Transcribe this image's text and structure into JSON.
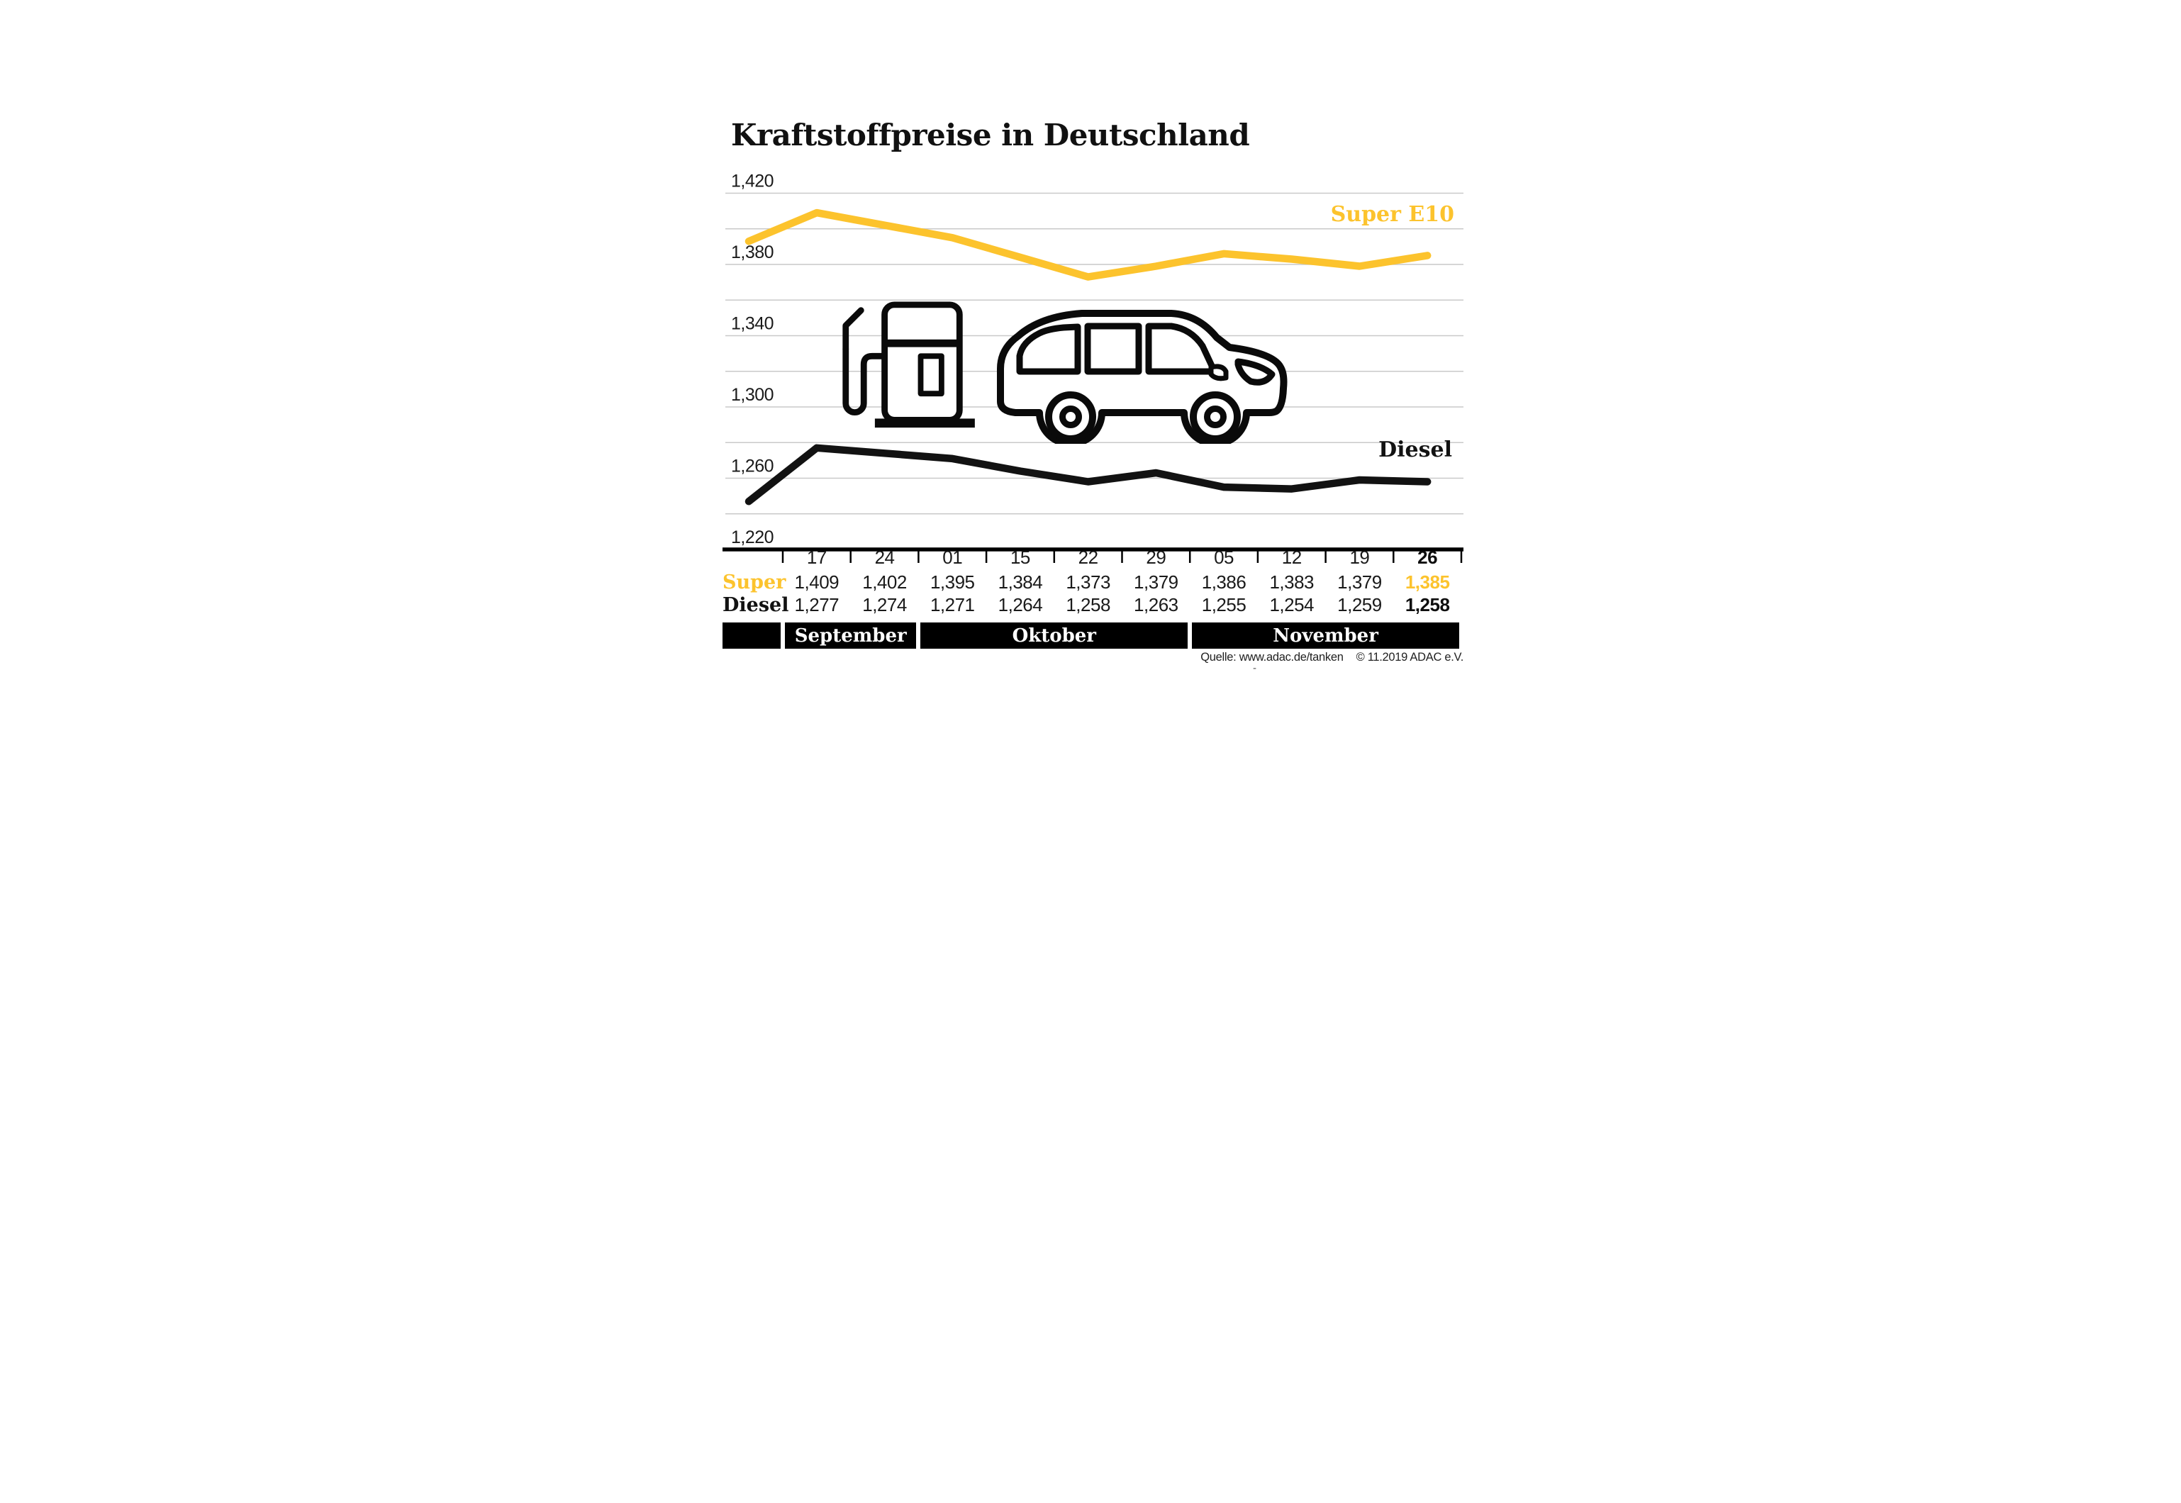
{
  "title": "Kraftstoffpreise in Deutschland",
  "footer": {
    "source": "Quelle: www.adac.de/tanken",
    "copyright": "© 11.2019  ADAC e.V.",
    "stray_mark": "-"
  },
  "colors": {
    "super_yellow": "#FCC32D",
    "diesel_black": "#121212",
    "gridline_gray": "#c9c9c9",
    "axis_black": "#000000",
    "band_background": "#000000",
    "band_text": "#ffffff"
  },
  "chart_data": {
    "type": "line",
    "title": "Kraftstoffpreise in Deutschland",
    "x_tick_labels": [
      "17",
      "24",
      "01",
      "15",
      "22",
      "29",
      "05",
      "12",
      "19",
      "26"
    ],
    "months": [
      {
        "label": "September",
        "columns": 2
      },
      {
        "label": "Oktober",
        "columns": 4
      },
      {
        "label": "November",
        "columns": 4
      }
    ],
    "y_ticks": [
      1420,
      1380,
      1340,
      1300,
      1260,
      1220
    ],
    "y_tick_labels": [
      "1,420",
      "1,380",
      "1,340",
      "1,300",
      "1,260",
      "1,220"
    ],
    "grid": {
      "min": 1220,
      "max": 1420,
      "step": 20
    },
    "ylim": [
      1214,
      1426
    ],
    "legend_position": "inline-right",
    "series": [
      {
        "name": "Super E10",
        "row_label": "Super",
        "color": "#FCC32D",
        "values": [
          1409,
          1402,
          1395,
          1384,
          1373,
          1379,
          1386,
          1383,
          1379,
          1385
        ],
        "display": [
          "1,409",
          "1,402",
          "1,395",
          "1,384",
          "1,373",
          "1,379",
          "1,386",
          "1,383",
          "1,379",
          "1,385"
        ],
        "lead_in_value": 1393
      },
      {
        "name": "Diesel",
        "row_label": "Diesel",
        "color": "#121212",
        "values": [
          1277,
          1274,
          1271,
          1264,
          1258,
          1263,
          1255,
          1254,
          1259,
          1258
        ],
        "display": [
          "1,277",
          "1,274",
          "1,271",
          "1,264",
          "1,258",
          "1,263",
          "1,255",
          "1,254",
          "1,259",
          "1,258"
        ],
        "lead_in_value": 1247
      }
    ],
    "highlight_last_column": true
  }
}
